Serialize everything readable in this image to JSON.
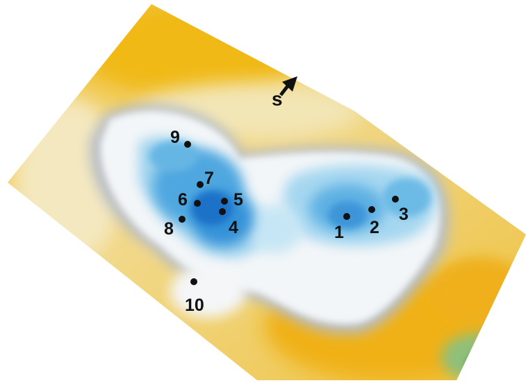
{
  "map": {
    "north_label": "S",
    "points": [
      {
        "id": "point-1",
        "label": "1"
      },
      {
        "id": "point-2",
        "label": "2"
      },
      {
        "id": "point-3",
        "label": "3"
      },
      {
        "id": "point-4",
        "label": "4"
      },
      {
        "id": "point-5",
        "label": "5"
      },
      {
        "id": "point-6",
        "label": "6"
      },
      {
        "id": "point-7",
        "label": "7"
      },
      {
        "id": "point-8",
        "label": "8"
      },
      {
        "id": "point-9",
        "label": "9"
      },
      {
        "id": "point-10",
        "label": "10"
      }
    ]
  }
}
